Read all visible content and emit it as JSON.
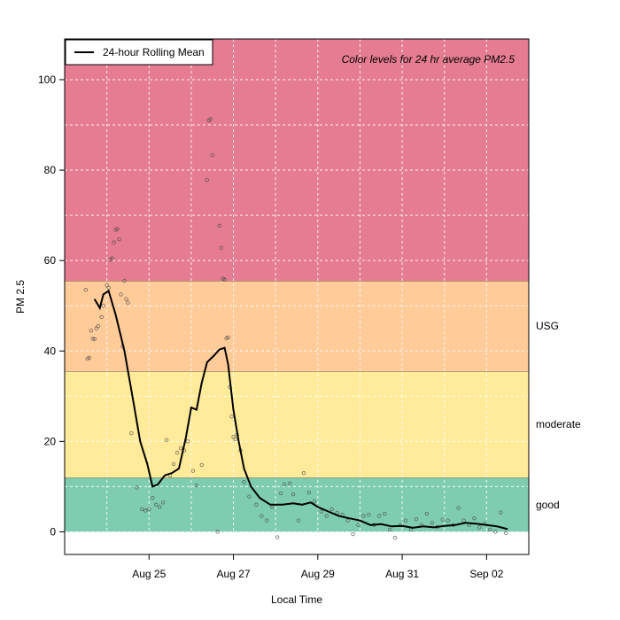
{
  "chart_data": {
    "type": "scatter",
    "xlabel": "Local Time",
    "ylabel": "PM 2.5",
    "annotation": "Color levels for 24 hr average PM2.5",
    "legend": {
      "placement": "top-left",
      "entries": [
        "24-hour Rolling Mean"
      ]
    },
    "xlim": [
      "2019-08-23",
      "2019-09-03"
    ],
    "ylim": [
      -5,
      109
    ],
    "x_ticks": [
      {
        "date": "2019-08-25",
        "label": "Aug 25"
      },
      {
        "date": "2019-08-27",
        "label": "Aug 27"
      },
      {
        "date": "2019-08-29",
        "label": "Aug 29"
      },
      {
        "date": "2019-08-31",
        "label": "Aug 31"
      },
      {
        "date": "2019-09-02",
        "label": "Sep 02"
      }
    ],
    "y_ticks": [
      0,
      20,
      40,
      60,
      80,
      100
    ],
    "grid": true,
    "bands": [
      {
        "label": "good",
        "from": 0,
        "to": 12,
        "color": "#7fcdb0"
      },
      {
        "label": "moderate",
        "from": 12,
        "to": 35.5,
        "color": "#ffeb9a"
      },
      {
        "label": "USG",
        "from": 35.5,
        "to": 55.5,
        "color": "#ffcb99"
      },
      {
        "label": "",
        "from": 55.5,
        "to": 109,
        "color": "#e67c91"
      }
    ],
    "series": [
      {
        "name": "24-hour Rolling Mean",
        "kind": "line",
        "color": "#000000",
        "points": [
          [
            "2019-08-23T17:00",
            51.5
          ],
          [
            "2019-08-23T20:00",
            49.5
          ],
          [
            "2019-08-23T22:00",
            52.5
          ],
          [
            "2019-08-24T01:00",
            53.3
          ],
          [
            "2019-08-24T05:00",
            48
          ],
          [
            "2019-08-24T10:00",
            40
          ],
          [
            "2019-08-24T15:00",
            29
          ],
          [
            "2019-08-24T19:00",
            20
          ],
          [
            "2019-08-24T23:00",
            15
          ],
          [
            "2019-08-25T02:00",
            10
          ],
          [
            "2019-08-25T05:00",
            10.5
          ],
          [
            "2019-08-25T09:00",
            12.5
          ],
          [
            "2019-08-25T13:00",
            13
          ],
          [
            "2019-08-25T17:00",
            14
          ],
          [
            "2019-08-25T21:00",
            21
          ],
          [
            "2019-08-26T00:00",
            27.5
          ],
          [
            "2019-08-26T03:00",
            27
          ],
          [
            "2019-08-26T06:00",
            33
          ],
          [
            "2019-08-26T09:00",
            37.5
          ],
          [
            "2019-08-26T13:00",
            39
          ],
          [
            "2019-08-26T16:00",
            40.3
          ],
          [
            "2019-08-26T19:00",
            40.7
          ],
          [
            "2019-08-26T21:00",
            37
          ],
          [
            "2019-08-27T00:00",
            27
          ],
          [
            "2019-08-27T03:00",
            20
          ],
          [
            "2019-08-27T06:00",
            14
          ],
          [
            "2019-08-27T10:00",
            10
          ],
          [
            "2019-08-27T15:00",
            7.5
          ],
          [
            "2019-08-27T21:00",
            6
          ],
          [
            "2019-08-28T04:00",
            6
          ],
          [
            "2019-08-28T10:00",
            6.3
          ],
          [
            "2019-08-28T15:00",
            6
          ],
          [
            "2019-08-28T20:00",
            6.5
          ],
          [
            "2019-08-29T00:00",
            5.5
          ],
          [
            "2019-08-29T06:00",
            4.5
          ],
          [
            "2019-08-29T12:00",
            3.5
          ],
          [
            "2019-08-29T18:00",
            3
          ],
          [
            "2019-08-30T00:00",
            2.5
          ],
          [
            "2019-08-30T06:00",
            1.5
          ],
          [
            "2019-08-30T12:00",
            1.7
          ],
          [
            "2019-08-30T18:00",
            1.2
          ],
          [
            "2019-08-31T00:00",
            1.3
          ],
          [
            "2019-08-31T06:00",
            0.9
          ],
          [
            "2019-08-31T12:00",
            1.2
          ],
          [
            "2019-08-31T18:00",
            1
          ],
          [
            "2019-09-01T00:00",
            1.3
          ],
          [
            "2019-09-01T06:00",
            1.5
          ],
          [
            "2019-09-01T12:00",
            2
          ],
          [
            "2019-09-01T18:00",
            1.8
          ],
          [
            "2019-09-02T00:00",
            1.5
          ],
          [
            "2019-09-02T06:00",
            1.2
          ],
          [
            "2019-09-02T12:00",
            0.6
          ]
        ]
      },
      {
        "name": "",
        "kind": "points",
        "color": "#444444",
        "points": [
          [
            "2019-08-23T12:00",
            53.5
          ],
          [
            "2019-08-23T13:00",
            38.3
          ],
          [
            "2019-08-23T14:00",
            38.5
          ],
          [
            "2019-08-23T15:00",
            44.5
          ],
          [
            "2019-08-23T16:00",
            42.7
          ],
          [
            "2019-08-23T17:00",
            42.6
          ],
          [
            "2019-08-23T18:00",
            45
          ],
          [
            "2019-08-23T19:00",
            45.5
          ],
          [
            "2019-08-23T21:00",
            47.5
          ],
          [
            "2019-08-23T22:00",
            50
          ],
          [
            "2019-08-24T00:00",
            54.5
          ],
          [
            "2019-08-24T01:00",
            54
          ],
          [
            "2019-08-24T02:00",
            60.2
          ],
          [
            "2019-08-24T03:00",
            60.5
          ],
          [
            "2019-08-24T04:00",
            64
          ],
          [
            "2019-08-24T05:00",
            66.8
          ],
          [
            "2019-08-24T06:00",
            67
          ],
          [
            "2019-08-24T07:00",
            64.7
          ],
          [
            "2019-08-24T08:00",
            52.5
          ],
          [
            "2019-08-24T09:00",
            41
          ],
          [
            "2019-08-24T10:00",
            55.5
          ],
          [
            "2019-08-24T11:00",
            51.5
          ],
          [
            "2019-08-24T12:00",
            50.7
          ],
          [
            "2019-08-24T14:00",
            21.8
          ],
          [
            "2019-08-24T17:00",
            9.8
          ],
          [
            "2019-08-24T20:00",
            5
          ],
          [
            "2019-08-24T22:00",
            4.7
          ],
          [
            "2019-08-25T00:00",
            5
          ],
          [
            "2019-08-25T02:00",
            7.5
          ],
          [
            "2019-08-25T04:00",
            6
          ],
          [
            "2019-08-25T06:00",
            5.5
          ],
          [
            "2019-08-25T08:00",
            6.5
          ],
          [
            "2019-08-25T10:00",
            20.3
          ],
          [
            "2019-08-25T12:00",
            12.5
          ],
          [
            "2019-08-25T14:00",
            15
          ],
          [
            "2019-08-25T16:00",
            17.5
          ],
          [
            "2019-08-25T18:00",
            18.5
          ],
          [
            "2019-08-25T20:00",
            18
          ],
          [
            "2019-08-25T22:00",
            20
          ],
          [
            "2019-08-26T01:00",
            13.5
          ],
          [
            "2019-08-26T03:00",
            10.3
          ],
          [
            "2019-08-26T06:00",
            14.8
          ],
          [
            "2019-08-26T09:00",
            77.8
          ],
          [
            "2019-08-26T10:00",
            91
          ],
          [
            "2019-08-26T11:00",
            91.3
          ],
          [
            "2019-08-26T12:00",
            83.3
          ],
          [
            "2019-08-26T15:00",
            0
          ],
          [
            "2019-08-26T16:00",
            67.7
          ],
          [
            "2019-08-26T17:00",
            62.8
          ],
          [
            "2019-08-26T18:00",
            56
          ],
          [
            "2019-08-26T19:00",
            55.8
          ],
          [
            "2019-08-26T20:00",
            42.8
          ],
          [
            "2019-08-26T21:00",
            43
          ],
          [
            "2019-08-26T22:00",
            32
          ],
          [
            "2019-08-26T23:00",
            25.5
          ],
          [
            "2019-08-27T00:00",
            21
          ],
          [
            "2019-08-27T01:00",
            20.5
          ],
          [
            "2019-08-27T02:00",
            21.5
          ],
          [
            "2019-08-27T04:00",
            18
          ],
          [
            "2019-08-27T06:00",
            11
          ],
          [
            "2019-08-27T09:00",
            7.8
          ],
          [
            "2019-08-27T13:00",
            6
          ],
          [
            "2019-08-27T16:00",
            3.5
          ],
          [
            "2019-08-27T19:00",
            2.5
          ],
          [
            "2019-08-27T22:00",
            5.5
          ],
          [
            "2019-08-28T01:00",
            -1.2
          ],
          [
            "2019-08-28T03:00",
            8.5
          ],
          [
            "2019-08-28T05:00",
            10.5
          ],
          [
            "2019-08-28T08:00",
            10.7
          ],
          [
            "2019-08-28T10:00",
            8.3
          ],
          [
            "2019-08-28T13:00",
            2.5
          ],
          [
            "2019-08-28T16:00",
            13
          ],
          [
            "2019-08-28T19:00",
            8.7
          ],
          [
            "2019-08-28T22:00",
            6.7
          ],
          [
            "2019-08-29T02:00",
            4.5
          ],
          [
            "2019-08-29T05:00",
            3.5
          ],
          [
            "2019-08-29T08:00",
            5
          ],
          [
            "2019-08-29T11:00",
            4.2
          ],
          [
            "2019-08-29T14:00",
            3.8
          ],
          [
            "2019-08-29T17:00",
            2.5
          ],
          [
            "2019-08-29T20:00",
            -0.5
          ],
          [
            "2019-08-29T23:00",
            1.5
          ],
          [
            "2019-08-30T02:00",
            3.5
          ],
          [
            "2019-08-30T05:00",
            3.8
          ],
          [
            "2019-08-30T08:00",
            1.5
          ],
          [
            "2019-08-30T11:00",
            3.5
          ],
          [
            "2019-08-30T14:00",
            4
          ],
          [
            "2019-08-30T17:00",
            0.5
          ],
          [
            "2019-08-30T20:00",
            -1.3
          ],
          [
            "2019-08-30T23:00",
            1.5
          ],
          [
            "2019-08-31T02:00",
            2.5
          ],
          [
            "2019-08-31T05:00",
            0.5
          ],
          [
            "2019-08-31T08:00",
            2.8
          ],
          [
            "2019-08-31T11:00",
            1.5
          ],
          [
            "2019-08-31T14:00",
            4
          ],
          [
            "2019-08-31T17:00",
            2
          ],
          [
            "2019-08-31T20:00",
            1
          ],
          [
            "2019-08-31T23:00",
            2.7
          ],
          [
            "2019-09-01T02:00",
            2.5
          ],
          [
            "2019-09-01T05:00",
            1.5
          ],
          [
            "2019-09-01T08:00",
            5.3
          ],
          [
            "2019-09-01T11:00",
            2.5
          ],
          [
            "2019-09-01T14:00",
            1.5
          ],
          [
            "2019-09-01T17:00",
            3
          ],
          [
            "2019-09-01T20:00",
            1
          ],
          [
            "2019-09-01T23:00",
            1.8
          ],
          [
            "2019-09-02T02:00",
            0.5
          ],
          [
            "2019-09-02T05:00",
            0
          ],
          [
            "2019-09-02T08:00",
            4.3
          ],
          [
            "2019-09-02T11:00",
            -0.3
          ]
        ]
      }
    ]
  }
}
